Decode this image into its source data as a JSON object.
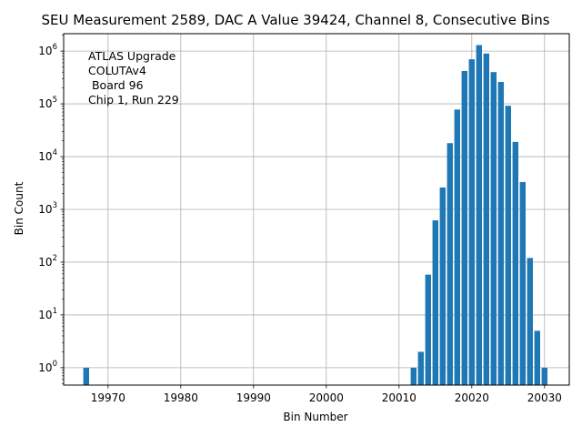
{
  "chart_data": {
    "type": "bar",
    "title": "SEU Measurement 2589, DAC A Value 39424, Channel 8, Consecutive Bins",
    "xlabel": "Bin Number",
    "ylabel": "Bin Count",
    "xlim": [
      19963.9,
      20033.4
    ],
    "ylim_log10": [
      -0.33,
      6.33
    ],
    "y_scale": "log",
    "grid": true,
    "bar_color": "#1f77b4",
    "x_ticks": [
      19970,
      19980,
      19990,
      20000,
      20010,
      20020,
      20030
    ],
    "x_tick_labels": [
      "19970",
      "19980",
      "19990",
      "20000",
      "20010",
      "20020",
      "20030"
    ],
    "y_ticks": [
      {
        "exp": 0,
        "base": "10",
        "sup": "0"
      },
      {
        "exp": 1,
        "base": "10",
        "sup": "1"
      },
      {
        "exp": 2,
        "base": "10",
        "sup": "2"
      },
      {
        "exp": 3,
        "base": "10",
        "sup": "3"
      },
      {
        "exp": 4,
        "base": "10",
        "sup": "4"
      },
      {
        "exp": 5,
        "base": "10",
        "sup": "5"
      },
      {
        "exp": 6,
        "base": "10",
        "sup": "6"
      }
    ],
    "annotation": [
      "ATLAS Upgrade",
      "COLUTAv4",
      " Board 96",
      "Chip 1, Run 229"
    ],
    "points": [
      {
        "x": 19967,
        "y": 1
      },
      {
        "x": 20012,
        "y": 1
      },
      {
        "x": 20013,
        "y": 2
      },
      {
        "x": 20014,
        "y": 58
      },
      {
        "x": 20015,
        "y": 620
      },
      {
        "x": 20016,
        "y": 2600
      },
      {
        "x": 20017,
        "y": 18000
      },
      {
        "x": 20018,
        "y": 78000
      },
      {
        "x": 20019,
        "y": 420000
      },
      {
        "x": 20020,
        "y": 700000
      },
      {
        "x": 20021,
        "y": 1300000
      },
      {
        "x": 20022,
        "y": 900000
      },
      {
        "x": 20023,
        "y": 400000
      },
      {
        "x": 20024,
        "y": 260000
      },
      {
        "x": 20025,
        "y": 92000
      },
      {
        "x": 20026,
        "y": 19000
      },
      {
        "x": 20027,
        "y": 3300
      },
      {
        "x": 20028,
        "y": 120
      },
      {
        "x": 20029,
        "y": 5
      },
      {
        "x": 20030,
        "y": 1
      }
    ]
  }
}
